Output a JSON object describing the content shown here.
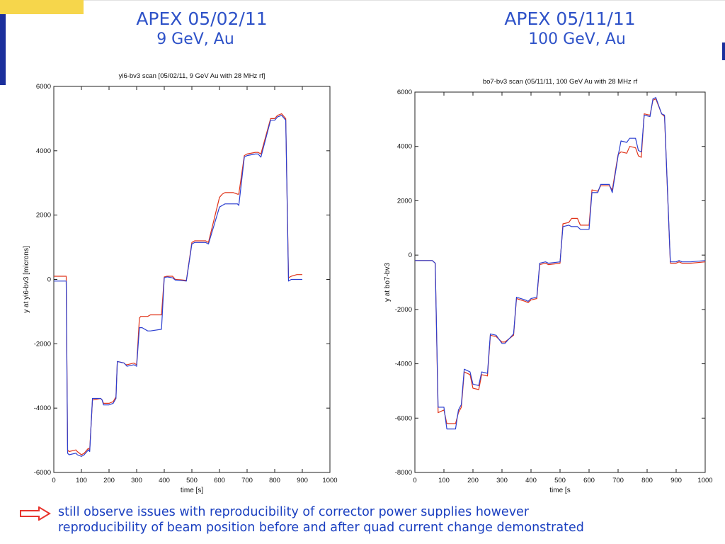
{
  "headings": {
    "left": {
      "line1": "APEX 05/02/11",
      "line2": "9 GeV, Au"
    },
    "right": {
      "line1": "APEX 05/11/11",
      "line2": "100 GeV, Au"
    }
  },
  "footer": {
    "line1": "still observe issues with reproducibility of corrector power supplies however",
    "line2": "reproducibility of beam position before and after quad current change demonstrated"
  },
  "colors": {
    "heading": "#2e52c8",
    "footer_text": "#1a3fc0",
    "arrow": "#e8352e",
    "series_red": "#e0341a",
    "series_blue": "#2c3fd0"
  },
  "chart_data": [
    {
      "type": "line",
      "title": "yi6-bv3 scan [05/02/11, 9 GeV Au with 28 MHz rf]",
      "xlabel": "time [s]",
      "ylabel": "y at yi6-bv3 [microns]",
      "xlim": [
        0,
        1000
      ],
      "ylim": [
        -6000,
        6000
      ],
      "xticks": [
        0,
        100,
        200,
        300,
        400,
        500,
        600,
        700,
        800,
        900,
        1000
      ],
      "yticks": [
        -6000,
        -4000,
        -2000,
        0,
        2000,
        4000,
        6000
      ],
      "grid": false,
      "series": [
        {
          "color": "#e0341a",
          "x": [
            0,
            45,
            50,
            55,
            80,
            85,
            100,
            110,
            120,
            125,
            130,
            140,
            170,
            175,
            180,
            200,
            215,
            225,
            230,
            255,
            260,
            265,
            290,
            300,
            310,
            315,
            340,
            350,
            390,
            400,
            410,
            430,
            440,
            460,
            480,
            500,
            510,
            550,
            560,
            600,
            610,
            620,
            650,
            665,
            670,
            690,
            700,
            730,
            740,
            750,
            785,
            790,
            800,
            810,
            825,
            830,
            840,
            850,
            860,
            880,
            900
          ],
          "y": [
            100,
            100,
            -5300,
            -5350,
            -5300,
            -5350,
            -5450,
            -5400,
            -5300,
            -5250,
            -5300,
            -3750,
            -3700,
            -3750,
            -3850,
            -3850,
            -3800,
            -3650,
            -2550,
            -2600,
            -2650,
            -2650,
            -2600,
            -2650,
            -1200,
            -1150,
            -1150,
            -1100,
            -1100,
            80,
            100,
            100,
            0,
            -10,
            -30,
            1150,
            1200,
            1200,
            1150,
            2550,
            2650,
            2700,
            2700,
            2650,
            2650,
            3850,
            3900,
            3950,
            3950,
            3900,
            5000,
            5000,
            5000,
            5100,
            5150,
            5100,
            5000,
            50,
            100,
            150,
            150
          ]
        },
        {
          "color": "#2c3fd0",
          "x": [
            0,
            45,
            50,
            55,
            80,
            85,
            100,
            110,
            120,
            125,
            130,
            140,
            170,
            175,
            180,
            200,
            215,
            225,
            230,
            255,
            260,
            265,
            290,
            300,
            310,
            320,
            340,
            350,
            390,
            400,
            410,
            430,
            440,
            460,
            480,
            500,
            510,
            550,
            560,
            600,
            610,
            620,
            650,
            665,
            670,
            690,
            700,
            730,
            740,
            750,
            785,
            790,
            800,
            810,
            825,
            830,
            840,
            850,
            860,
            880,
            900
          ],
          "y": [
            -50,
            -50,
            -5400,
            -5450,
            -5400,
            -5450,
            -5500,
            -5450,
            -5350,
            -5300,
            -5350,
            -3700,
            -3700,
            -3750,
            -3900,
            -3900,
            -3850,
            -3700,
            -2550,
            -2600,
            -2650,
            -2700,
            -2650,
            -2700,
            -1500,
            -1500,
            -1600,
            -1600,
            -1550,
            50,
            80,
            50,
            -20,
            -30,
            -50,
            1100,
            1150,
            1150,
            1100,
            2250,
            2300,
            2350,
            2350,
            2350,
            2300,
            3800,
            3850,
            3900,
            3900,
            3800,
            4950,
            4950,
            4950,
            5050,
            5100,
            5050,
            4950,
            -50,
            0,
            0,
            0
          ]
        }
      ]
    },
    {
      "type": "line",
      "title": "bo7-bv3 scan (05/11/11, 100 GeV Au with 28 MHz rf",
      "xlabel": "time [s",
      "ylabel": "y at bo7-bv3",
      "xlim": [
        0,
        1000
      ],
      "ylim": [
        -8000,
        6000
      ],
      "xticks": [
        0,
        100,
        200,
        300,
        400,
        500,
        600,
        700,
        800,
        900,
        1000
      ],
      "yticks": [
        -8000,
        -6000,
        -4000,
        -2000,
        0,
        2000,
        4000,
        6000
      ],
      "grid": false,
      "series": [
        {
          "color": "#e0341a",
          "x": [
            0,
            60,
            70,
            80,
            100,
            110,
            140,
            150,
            160,
            170,
            190,
            200,
            220,
            230,
            250,
            260,
            280,
            300,
            310,
            340,
            350,
            380,
            390,
            400,
            420,
            430,
            450,
            460,
            500,
            510,
            530,
            540,
            560,
            570,
            600,
            610,
            630,
            640,
            670,
            680,
            700,
            710,
            730,
            740,
            760,
            770,
            780,
            790,
            810,
            820,
            830,
            850,
            860,
            880,
            900,
            910,
            920,
            950,
            1000
          ],
          "y": [
            -200,
            -200,
            -300,
            -5800,
            -5700,
            -6200,
            -6200,
            -5800,
            -5600,
            -4300,
            -4400,
            -4900,
            -4950,
            -4400,
            -4450,
            -2950,
            -3000,
            -3200,
            -3200,
            -2950,
            -1600,
            -1700,
            -1750,
            -1650,
            -1600,
            -350,
            -300,
            -350,
            -300,
            1150,
            1200,
            1350,
            1350,
            1100,
            1100,
            2400,
            2350,
            2550,
            2550,
            2400,
            3700,
            3800,
            3750,
            4000,
            3950,
            3650,
            3600,
            5200,
            5150,
            5700,
            5750,
            5200,
            5100,
            -300,
            -300,
            -250,
            -300,
            -300,
            -250
          ]
        },
        {
          "color": "#2c3fd0",
          "x": [
            0,
            60,
            70,
            80,
            100,
            110,
            140,
            150,
            160,
            170,
            190,
            200,
            220,
            230,
            250,
            260,
            280,
            300,
            310,
            340,
            350,
            380,
            390,
            400,
            420,
            430,
            450,
            460,
            500,
            510,
            530,
            540,
            560,
            570,
            600,
            610,
            630,
            640,
            670,
            680,
            700,
            710,
            730,
            740,
            760,
            770,
            780,
            790,
            810,
            820,
            830,
            850,
            860,
            880,
            900,
            910,
            920,
            950,
            1000
          ],
          "y": [
            -200,
            -200,
            -300,
            -5600,
            -5600,
            -6400,
            -6400,
            -5700,
            -5500,
            -4200,
            -4300,
            -4750,
            -4800,
            -4300,
            -4350,
            -2900,
            -2950,
            -3250,
            -3250,
            -2900,
            -1550,
            -1650,
            -1700,
            -1600,
            -1550,
            -300,
            -250,
            -300,
            -250,
            1050,
            1100,
            1050,
            1050,
            950,
            950,
            2300,
            2300,
            2600,
            2600,
            2300,
            3650,
            4200,
            4150,
            4300,
            4300,
            3850,
            3800,
            5150,
            5100,
            5750,
            5800,
            5200,
            5150,
            -250,
            -250,
            -200,
            -250,
            -250,
            -200
          ]
        }
      ]
    }
  ]
}
